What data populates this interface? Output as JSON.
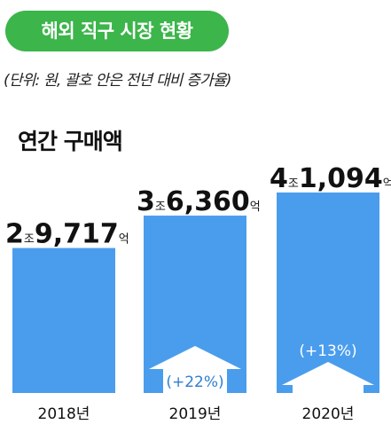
{
  "header": {
    "title": "해외 직구 시장 현황",
    "unit_note": "(단위: 원, 괄호 안은 전년 대비 증가율)"
  },
  "colors": {
    "title_bg": "#3cb54a",
    "bar": "#4a9ded",
    "growth_text": "#2f7fd0"
  },
  "chart_data": {
    "type": "bar",
    "title": "연간 구매액",
    "categories": [
      "2018년",
      "2019년",
      "2020년"
    ],
    "values": [
      29717,
      36360,
      41094
    ],
    "unit": "억 원",
    "value_labels": [
      {
        "jo": "2",
        "jo_unit": "조",
        "eok": "9,717",
        "eok_unit": "억"
      },
      {
        "jo": "3",
        "jo_unit": "조",
        "eok": "6,360",
        "eok_unit": "억"
      },
      {
        "jo": "4",
        "jo_unit": "조",
        "eok": "1,094",
        "eok_unit": "억"
      }
    ],
    "growth_labels": [
      "",
      "(+22%)",
      "(+13%)"
    ],
    "xlabel": "",
    "ylabel": ""
  }
}
